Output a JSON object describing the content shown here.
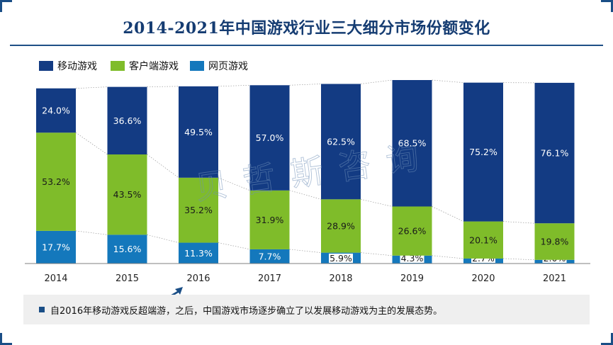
{
  "title": "2014-2021年中国游戏行业三大细分市场份额变化",
  "note": "自2016年移动游戏反超端游，之后，中国游戏市场逐步确立了以发展移动游戏为主的发展态势。",
  "watermark": "贝哲斯咨询",
  "colors": {
    "mobile": "#133b83",
    "client": "#7fbc2a",
    "web": "#1478bc",
    "title": "#153c72"
  },
  "chart_data": {
    "type": "bar",
    "stacked": true,
    "percent": true,
    "categories": [
      "2014",
      "2015",
      "2016",
      "2017",
      "2018",
      "2019",
      "2020",
      "2021"
    ],
    "series": [
      {
        "name": "网页游戏",
        "color": "#1478bc",
        "values": [
          17.7,
          15.6,
          11.3,
          7.7,
          5.9,
          4.3,
          2.7,
          2.0
        ]
      },
      {
        "name": "客户端游戏",
        "color": "#7fbc2a",
        "values": [
          53.2,
          43.5,
          35.2,
          31.9,
          28.9,
          26.6,
          20.1,
          19.8
        ]
      },
      {
        "name": "移动游戏",
        "color": "#133b83",
        "values": [
          24.0,
          36.6,
          49.5,
          57.0,
          62.5,
          68.5,
          75.2,
          76.1
        ]
      }
    ],
    "legend_order": [
      "移动游戏",
      "客户端游戏",
      "网页游戏"
    ],
    "legend_position": "top-left",
    "ylim": [
      0,
      100
    ],
    "grid": false
  }
}
